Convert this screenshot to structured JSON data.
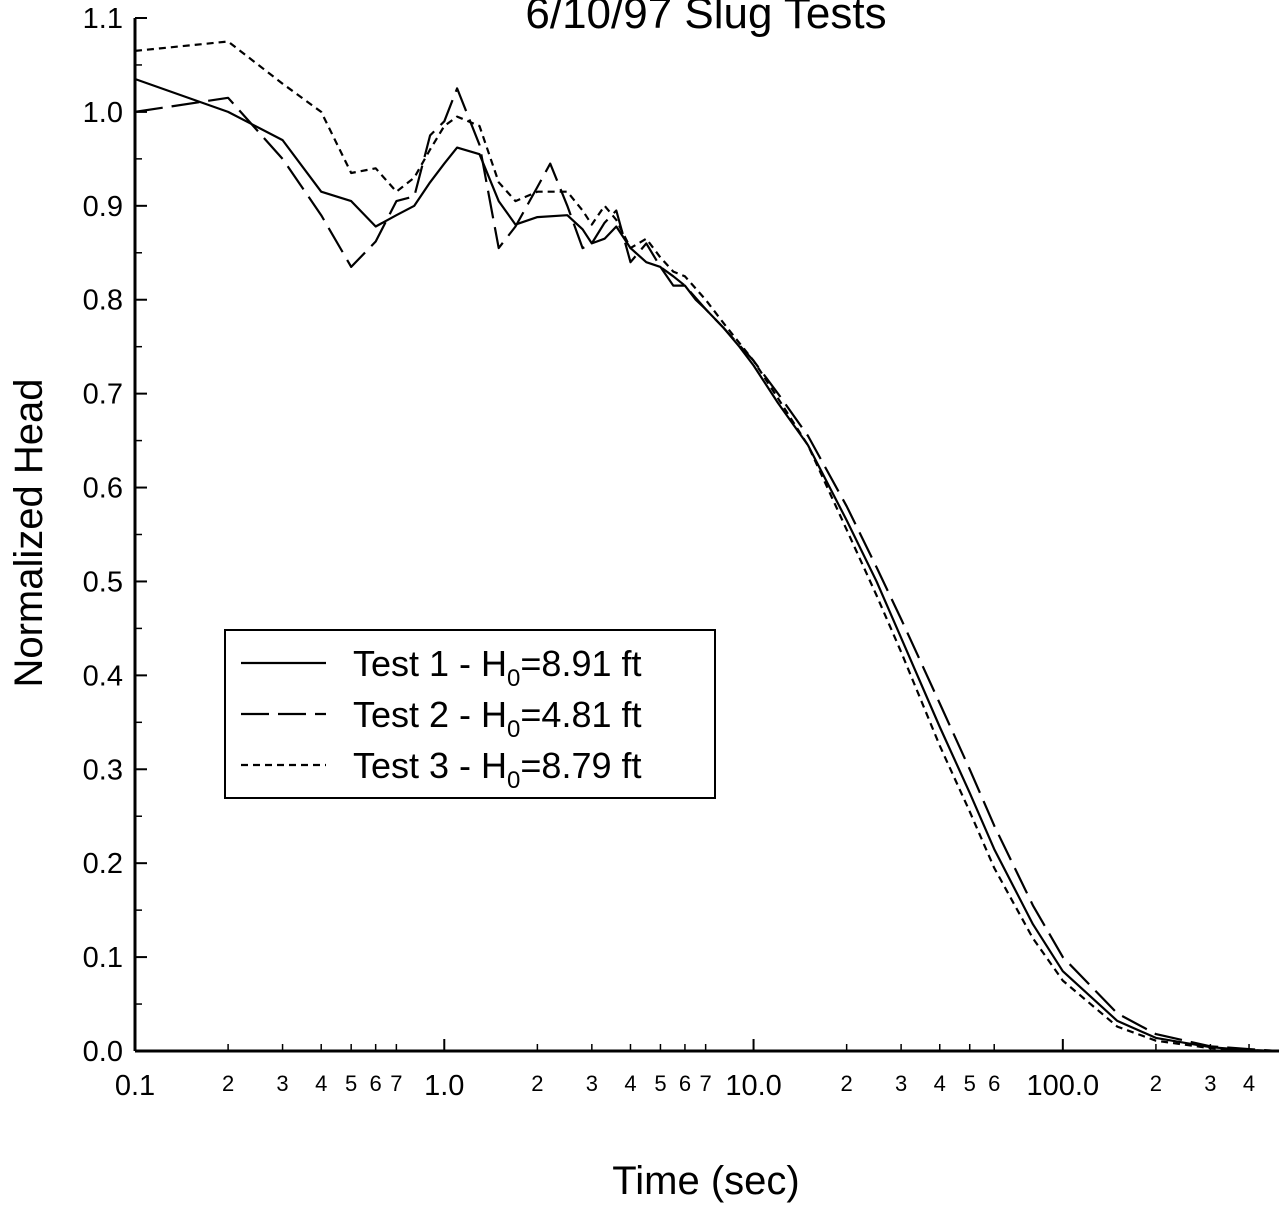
{
  "chart_data": {
    "type": "line",
    "title": "6/10/97 Slug Tests",
    "xlabel": "Time (sec)",
    "ylabel": "Normalized Head",
    "xscale": "log",
    "xlim": [
      0.1,
      500
    ],
    "ylim": [
      0.0,
      1.1
    ],
    "x_major_ticks": [
      {
        "value": 0.1,
        "label": "0.1"
      },
      {
        "value": 1,
        "label": "1.0"
      },
      {
        "value": 10,
        "label": "10.0"
      },
      {
        "value": 100,
        "label": "100.0"
      }
    ],
    "x_minor_ticks": [
      {
        "value": 0.2,
        "label": "2"
      },
      {
        "value": 0.3,
        "label": "3"
      },
      {
        "value": 0.4,
        "label": "4"
      },
      {
        "value": 0.5,
        "label": "5"
      },
      {
        "value": 0.6,
        "label": "6"
      },
      {
        "value": 0.7,
        "label": "7"
      },
      {
        "value": 2,
        "label": "2"
      },
      {
        "value": 3,
        "label": "3"
      },
      {
        "value": 4,
        "label": "4"
      },
      {
        "value": 5,
        "label": "5"
      },
      {
        "value": 6,
        "label": "6"
      },
      {
        "value": 7,
        "label": "7"
      },
      {
        "value": 20,
        "label": "2"
      },
      {
        "value": 30,
        "label": "3"
      },
      {
        "value": 40,
        "label": "4"
      },
      {
        "value": 50,
        "label": "5"
      },
      {
        "value": 60,
        "label": "6"
      },
      {
        "value": 200,
        "label": "2"
      },
      {
        "value": 300,
        "label": "3"
      },
      {
        "value": 400,
        "label": "4"
      }
    ],
    "y_ticks": [
      {
        "value": 0.0,
        "label": "0.0"
      },
      {
        "value": 0.1,
        "label": "0.1"
      },
      {
        "value": 0.2,
        "label": "0.2"
      },
      {
        "value": 0.3,
        "label": "0.3"
      },
      {
        "value": 0.4,
        "label": "0.4"
      },
      {
        "value": 0.5,
        "label": "0.5"
      },
      {
        "value": 0.6,
        "label": "0.6"
      },
      {
        "value": 0.7,
        "label": "0.7"
      },
      {
        "value": 0.8,
        "label": "0.8"
      },
      {
        "value": 0.9,
        "label": "0.9"
      },
      {
        "value": 1.0,
        "label": "1.0"
      },
      {
        "value": 1.1,
        "label": "1.1"
      }
    ],
    "legend_position": "center-left",
    "series": [
      {
        "name": "Test 1 - H0=8.91 ft",
        "legend": {
          "prefix": "Test 1 - H",
          "subscript": "0",
          "suffix": "=8.91 ft"
        },
        "line_style": "solid",
        "x": [
          0.1,
          0.2,
          0.3,
          0.4,
          0.5,
          0.6,
          0.7,
          0.8,
          0.9,
          1.0,
          1.1,
          1.3,
          1.5,
          1.7,
          2.0,
          2.5,
          2.8,
          3.0,
          3.3,
          3.6,
          4.0,
          4.5,
          5.0,
          5.5,
          6.0,
          6.5,
          7.0,
          8.0,
          9.0,
          10,
          12,
          15,
          20,
          25,
          30,
          40,
          50,
          60,
          80,
          100,
          150,
          200,
          300,
          400,
          500
        ],
        "y": [
          1.035,
          1.0,
          0.97,
          0.915,
          0.905,
          0.878,
          0.89,
          0.9,
          0.925,
          0.945,
          0.962,
          0.955,
          0.905,
          0.88,
          0.888,
          0.89,
          0.875,
          0.86,
          0.865,
          0.878,
          0.855,
          0.84,
          0.835,
          0.815,
          0.815,
          0.8,
          0.79,
          0.77,
          0.75,
          0.73,
          0.69,
          0.645,
          0.565,
          0.5,
          0.44,
          0.345,
          0.275,
          0.215,
          0.135,
          0.085,
          0.032,
          0.014,
          0.004,
          0.001,
          0.0
        ]
      },
      {
        "name": "Test 2 - H0=4.81 ft",
        "legend": {
          "prefix": "Test 2 - H",
          "subscript": "0",
          "suffix": "=4.81 ft"
        },
        "line_style": "long-dash",
        "x": [
          0.1,
          0.2,
          0.3,
          0.4,
          0.5,
          0.6,
          0.7,
          0.8,
          0.9,
          1.0,
          1.1,
          1.3,
          1.5,
          1.7,
          2.0,
          2.2,
          2.5,
          2.8,
          3.0,
          3.3,
          3.6,
          4.0,
          4.5,
          5.0,
          5.5,
          6.0,
          7.0,
          8.0,
          10,
          12,
          15,
          20,
          25,
          30,
          40,
          50,
          60,
          80,
          100,
          150,
          200,
          300,
          400,
          500
        ],
        "y": [
          1.0,
          1.015,
          0.95,
          0.89,
          0.835,
          0.862,
          0.905,
          0.91,
          0.975,
          0.99,
          1.025,
          0.965,
          0.855,
          0.878,
          0.92,
          0.945,
          0.9,
          0.855,
          0.86,
          0.882,
          0.895,
          0.84,
          0.86,
          0.835,
          0.825,
          0.815,
          0.79,
          0.77,
          0.735,
          0.7,
          0.655,
          0.58,
          0.515,
          0.46,
          0.37,
          0.3,
          0.24,
          0.155,
          0.1,
          0.04,
          0.018,
          0.005,
          0.002,
          0.0
        ]
      },
      {
        "name": "Test 3 - H0=8.79 ft",
        "legend": {
          "prefix": "Test 3 - H",
          "subscript": "0",
          "suffix": "=8.79 ft"
        },
        "line_style": "short-dash",
        "x": [
          0.1,
          0.2,
          0.3,
          0.4,
          0.5,
          0.6,
          0.7,
          0.8,
          0.9,
          1.0,
          1.1,
          1.3,
          1.5,
          1.7,
          2.0,
          2.5,
          2.8,
          3.0,
          3.3,
          3.6,
          4.0,
          4.5,
          5.0,
          5.5,
          6.0,
          7.0,
          8.0,
          10,
          12,
          15,
          20,
          25,
          30,
          40,
          50,
          60,
          80,
          100,
          150,
          200,
          300,
          400,
          500
        ],
        "y": [
          1.065,
          1.075,
          1.03,
          1.0,
          0.935,
          0.94,
          0.915,
          0.93,
          0.96,
          0.985,
          0.995,
          0.985,
          0.925,
          0.905,
          0.915,
          0.915,
          0.895,
          0.88,
          0.9,
          0.885,
          0.855,
          0.865,
          0.845,
          0.83,
          0.825,
          0.8,
          0.775,
          0.735,
          0.695,
          0.645,
          0.555,
          0.485,
          0.425,
          0.325,
          0.255,
          0.195,
          0.12,
          0.075,
          0.026,
          0.011,
          0.003,
          0.001,
          0.0
        ]
      }
    ]
  }
}
